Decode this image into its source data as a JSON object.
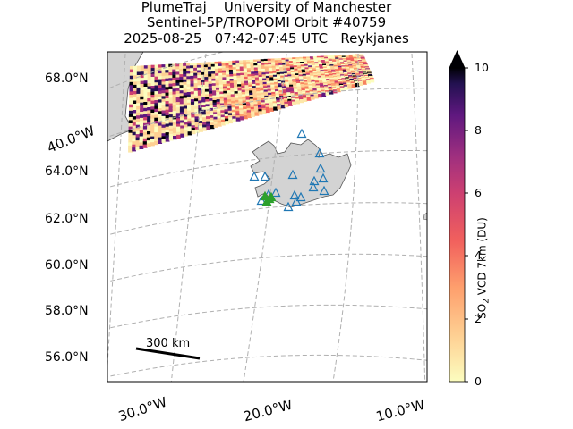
{
  "title": {
    "line1": "PlumeTraj    University of Manchester",
    "line2": "Sentinel-5P/TROPOMI Orbit #40759",
    "line3": "2025-08-25   07:42-07:45 UTC   Reykjanes"
  },
  "map": {
    "lat_labels": [
      "68.0°N",
      "64.0°N",
      "62.0°N",
      "60.0°N",
      "58.0°N",
      "56.0°N"
    ],
    "lon_labels": [
      "40.0°W",
      "30.0°W",
      "20.0°W",
      "10.0°W"
    ],
    "scale_bar_label": "300 km",
    "grid": "dashed",
    "land_color": "#d3d3d3",
    "volcano_marker_color": "#1f77b4",
    "active_volcano_color": "#2ca02c"
  },
  "colorbar": {
    "label_main": "SO",
    "label_sub": "2",
    "label_rest": " VCD 7km (DU)",
    "ticks": [
      "10",
      "8",
      "6",
      "4",
      "2",
      "0"
    ],
    "min": 0,
    "max": 10,
    "colormap": "magma_r"
  }
}
